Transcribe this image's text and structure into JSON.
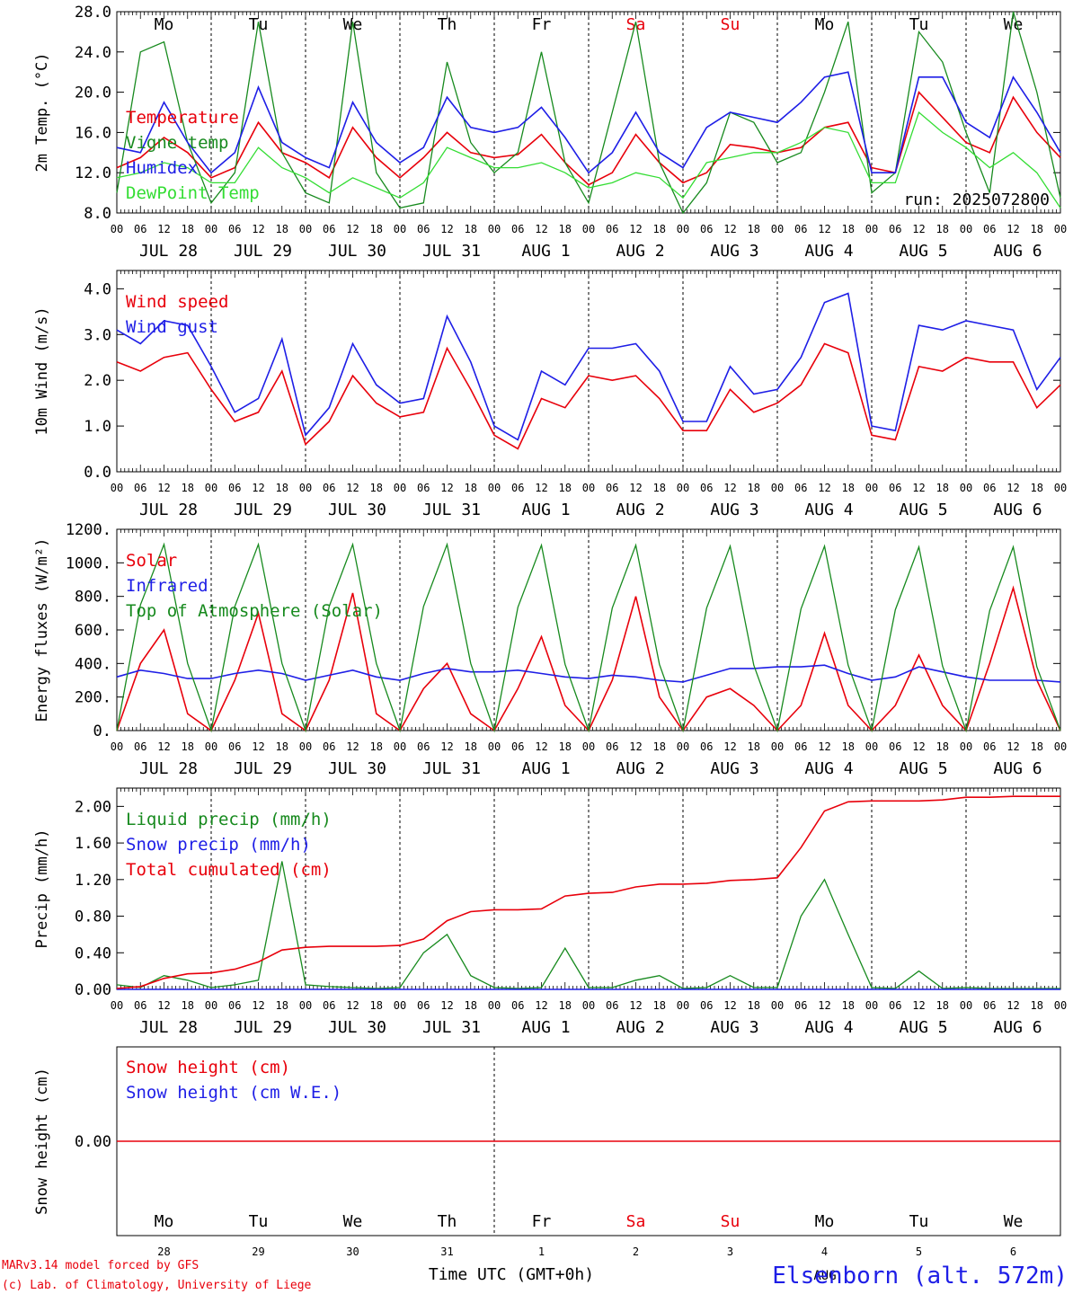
{
  "meta": {
    "run": "run: 2025072800",
    "footer_left_1": "MARv3.14 model forced by GFS",
    "footer_left_2": "(c) Lab. of Climatology, University of Liege",
    "footer_center": "Time UTC (GMT+0h)",
    "footer_month": "AUG",
    "station": "Elsenborn (alt. 572m)"
  },
  "axis": {
    "hour_labels": [
      "00",
      "06",
      "12",
      "18"
    ],
    "final_hour_label": "00",
    "dates": [
      "JUL 28",
      "JUL 29",
      "JUL 30",
      "JUL 31",
      "AUG  1",
      "AUG  2",
      "AUG  3",
      "AUG  4",
      "AUG  5",
      "AUG  6"
    ],
    "weekdays": [
      "Mo",
      "Tu",
      "We",
      "Th",
      "Fr",
      "Sa",
      "Su",
      "Mo",
      "Tu",
      "We"
    ],
    "bottom_day_numbers": [
      "28",
      "29",
      "30",
      "31",
      "1",
      "2",
      "3",
      "4",
      "5",
      "6"
    ]
  },
  "colors": {
    "red": "#e8000b",
    "blue": "#1e1ee6",
    "green": "#178a1e",
    "lightgreen": "#33dd33",
    "weekend": "#e8000b",
    "grid": "#000000"
  },
  "chart_data": [
    {
      "type": "line",
      "ylabel": "2m Temp. (°C)",
      "ylim": [
        8.0,
        28.0
      ],
      "yticks": [
        "8.0",
        "12.0",
        "16.0",
        "20.0",
        "24.0",
        "28.0"
      ],
      "x": "hours since JUL 28 00 UTC, every 6 h",
      "series": [
        {
          "name": "Temperature",
          "color": "red",
          "values": [
            12.5,
            13.5,
            15.5,
            14.0,
            11.5,
            12.5,
            17.0,
            14.0,
            13.0,
            11.5,
            16.5,
            13.5,
            11.5,
            13.5,
            16.0,
            14.0,
            13.5,
            13.8,
            15.8,
            13.0,
            10.8,
            12.0,
            15.8,
            13.0,
            11.0,
            12.0,
            14.8,
            14.5,
            14.0,
            14.5,
            16.5,
            17.0,
            12.5,
            12.0,
            20.0,
            17.5,
            15.0,
            14.0,
            19.5,
            16.0,
            13.5
          ]
        },
        {
          "name": "Vigne temp",
          "color": "green",
          "values": [
            10.0,
            24.0,
            25.0,
            15.0,
            9.0,
            12.0,
            27.0,
            14.0,
            10.0,
            9.0,
            27.0,
            12.0,
            8.5,
            9.0,
            23.0,
            15.0,
            12.0,
            14.0,
            24.0,
            13.0,
            9.0,
            18.0,
            27.0,
            13.0,
            8.0,
            11.0,
            18.0,
            17.0,
            13.0,
            14.0,
            20.0,
            27.0,
            10.0,
            12.0,
            26.0,
            23.0,
            16.0,
            10.0,
            28.0,
            20.0,
            9.5
          ]
        },
        {
          "name": "Humidex",
          "color": "blue",
          "values": [
            14.5,
            14.0,
            19.0,
            15.0,
            12.0,
            14.0,
            20.5,
            15.0,
            13.5,
            12.5,
            19.0,
            15.0,
            13.0,
            14.5,
            19.5,
            16.5,
            16.0,
            16.5,
            18.5,
            15.5,
            12.0,
            14.0,
            18.0,
            14.0,
            12.5,
            16.5,
            18.0,
            17.5,
            17.0,
            19.0,
            21.5,
            22.0,
            12.0,
            12.0,
            21.5,
            21.5,
            17.0,
            15.5,
            21.5,
            18.0,
            14.0
          ]
        },
        {
          "name": "DewPoint Temp",
          "color": "lightgreen",
          "values": [
            11.5,
            12.0,
            13.0,
            12.5,
            11.0,
            11.0,
            14.5,
            12.5,
            11.5,
            10.0,
            11.5,
            10.5,
            9.5,
            11.0,
            14.5,
            13.5,
            12.5,
            12.5,
            13.0,
            12.0,
            10.5,
            11.0,
            12.0,
            11.5,
            9.5,
            13.0,
            13.5,
            14.0,
            14.0,
            15.0,
            16.5,
            16.0,
            11.0,
            11.0,
            18.0,
            16.0,
            14.5,
            12.5,
            14.0,
            12.0,
            8.5
          ]
        }
      ]
    },
    {
      "type": "line",
      "ylabel": "10m Wind (m/s)",
      "ylim": [
        0.0,
        4.4
      ],
      "yticks": [
        "0.0",
        "1.0",
        "2.0",
        "3.0",
        "4.0"
      ],
      "series": [
        {
          "name": "Wind speed",
          "color": "red",
          "values": [
            2.4,
            2.2,
            2.5,
            2.6,
            1.8,
            1.1,
            1.3,
            2.2,
            0.6,
            1.1,
            2.1,
            1.5,
            1.2,
            1.3,
            2.7,
            1.8,
            0.8,
            0.5,
            1.6,
            1.4,
            2.1,
            2.0,
            2.1,
            1.6,
            0.9,
            0.9,
            1.8,
            1.3,
            1.5,
            1.9,
            2.8,
            2.6,
            0.8,
            0.7,
            2.3,
            2.2,
            2.5,
            2.4,
            2.4,
            1.4,
            1.9
          ]
        },
        {
          "name": "Wind gust",
          "color": "blue",
          "values": [
            3.1,
            2.8,
            3.3,
            3.2,
            2.3,
            1.3,
            1.6,
            2.9,
            0.8,
            1.4,
            2.8,
            1.9,
            1.5,
            1.6,
            3.4,
            2.4,
            1.0,
            0.7,
            2.2,
            1.9,
            2.7,
            2.7,
            2.8,
            2.2,
            1.1,
            1.1,
            2.3,
            1.7,
            1.8,
            2.5,
            3.7,
            3.9,
            1.0,
            0.9,
            3.2,
            3.1,
            3.3,
            3.2,
            3.1,
            1.8,
            2.5
          ]
        }
      ]
    },
    {
      "type": "line",
      "ylabel": "Energy fluxes (W/m²)",
      "ylim": [
        0,
        1200
      ],
      "yticks": [
        "0.",
        "200.",
        "400.",
        "600.",
        "800.",
        "1000.",
        "1200."
      ],
      "series": [
        {
          "name": "Solar",
          "color": "red",
          "values": [
            0,
            400,
            600,
            100,
            0,
            300,
            700,
            100,
            0,
            300,
            820,
            100,
            0,
            250,
            400,
            100,
            0,
            250,
            560,
            150,
            0,
            300,
            800,
            200,
            0,
            200,
            250,
            150,
            0,
            150,
            580,
            150,
            0,
            150,
            450,
            150,
            0,
            400,
            850,
            300,
            0
          ]
        },
        {
          "name": "Infrared",
          "color": "blue",
          "values": [
            320,
            360,
            340,
            310,
            310,
            340,
            360,
            340,
            300,
            330,
            360,
            320,
            300,
            340,
            370,
            350,
            350,
            360,
            340,
            320,
            310,
            330,
            320,
            300,
            290,
            330,
            370,
            370,
            380,
            380,
            390,
            340,
            300,
            320,
            380,
            350,
            320,
            300,
            300,
            300,
            290
          ]
        },
        {
          "name": "Top of Atmosphere (Solar)",
          "color": "green",
          "values": [
            0,
            750,
            1110,
            400,
            0,
            740,
            1110,
            400,
            0,
            740,
            1110,
            400,
            0,
            740,
            1110,
            400,
            0,
            735,
            1105,
            395,
            0,
            730,
            1105,
            395,
            0,
            730,
            1100,
            390,
            0,
            725,
            1100,
            390,
            0,
            720,
            1095,
            385,
            0,
            715,
            1095,
            380,
            0
          ]
        }
      ]
    },
    {
      "type": "line",
      "ylabel": "Precip (mm/h)",
      "ylim": [
        0.0,
        2.2
      ],
      "yticks": [
        "0.00",
        "0.40",
        "0.80",
        "1.20",
        "1.60",
        "2.00"
      ],
      "series": [
        {
          "name": "Liquid precip (mm/h)",
          "color": "green",
          "values": [
            0.05,
            0.02,
            0.15,
            0.1,
            0.02,
            0.05,
            0.1,
            1.4,
            0.05,
            0.03,
            0.02,
            0.01,
            0.02,
            0.4,
            0.6,
            0.15,
            0.02,
            0.01,
            0.02,
            0.45,
            0.02,
            0.02,
            0.1,
            0.15,
            0.01,
            0.02,
            0.15,
            0.02,
            0.02,
            0.8,
            1.2,
            0.6,
            0.02,
            0.01,
            0.2,
            0.01,
            0.02,
            0.01,
            0.01,
            0.01,
            0.01
          ]
        },
        {
          "name": "Snow precip (mm/h)",
          "color": "blue",
          "values": [
            0,
            0,
            0,
            0,
            0,
            0,
            0,
            0,
            0,
            0,
            0,
            0,
            0,
            0,
            0,
            0,
            0,
            0,
            0,
            0,
            0,
            0,
            0,
            0,
            0,
            0,
            0,
            0,
            0,
            0,
            0,
            0,
            0,
            0,
            0,
            0,
            0,
            0,
            0,
            0,
            0
          ]
        },
        {
          "name": "Total cumulated (cm)",
          "color": "red",
          "values": [
            0.01,
            0.03,
            0.12,
            0.17,
            0.18,
            0.22,
            0.3,
            0.43,
            0.46,
            0.47,
            0.47,
            0.47,
            0.48,
            0.55,
            0.75,
            0.85,
            0.87,
            0.87,
            0.88,
            1.02,
            1.05,
            1.06,
            1.12,
            1.15,
            1.15,
            1.16,
            1.19,
            1.2,
            1.22,
            1.55,
            1.95,
            2.05,
            2.06,
            2.06,
            2.06,
            2.07,
            2.1,
            2.1,
            2.11,
            2.11,
            2.11
          ]
        }
      ]
    },
    {
      "type": "line",
      "ylabel": "Snow height (cm)",
      "ylim": [
        -0.5,
        0.5
      ],
      "yticks": [
        "0.00"
      ],
      "series": [
        {
          "name": "Snow height (cm)",
          "color": "red",
          "values": [
            0,
            0
          ]
        },
        {
          "name": "Snow height (cm W.E.)",
          "color": "blue",
          "values": []
        }
      ]
    }
  ]
}
